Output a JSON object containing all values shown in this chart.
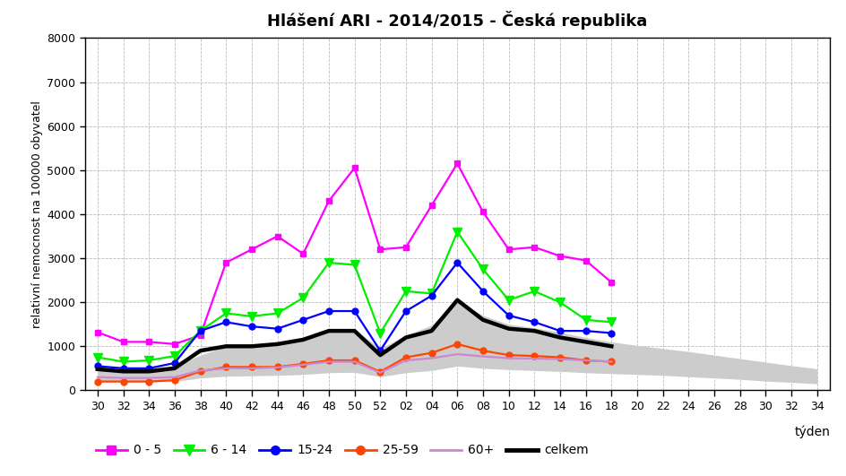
{
  "title": "Hlášení ARI - 2014/2015 - Česká republika",
  "ylabel": "relativní nemocnost na 100000 obyvatel",
  "xlabel": "týden",
  "ylim": [
    0,
    8000
  ],
  "yticks": [
    0,
    1000,
    2000,
    3000,
    4000,
    5000,
    6000,
    7000,
    8000
  ],
  "weeks_labels": [
    "30",
    "32",
    "34",
    "36",
    "38",
    "40",
    "42",
    "44",
    "46",
    "48",
    "50",
    "52",
    "02",
    "04",
    "06",
    "08",
    "10",
    "12",
    "14",
    "16",
    "18",
    "20",
    "22",
    "24",
    "26",
    "28",
    "30",
    "32",
    "34"
  ],
  "series_0_5": [
    1320,
    1100,
    1100,
    1050,
    1250,
    2900,
    3200,
    3500,
    3100,
    4300,
    5050,
    3200,
    3250,
    4200,
    5150,
    4050,
    3200,
    3250,
    3050,
    2950,
    2450,
    null,
    null,
    null,
    null,
    null,
    null,
    null,
    null
  ],
  "series_6_14": [
    750,
    650,
    680,
    780,
    1350,
    1750,
    1680,
    1750,
    2100,
    2900,
    2850,
    1300,
    2250,
    2200,
    3600,
    2750,
    2050,
    2250,
    2000,
    1600,
    1550,
    null,
    null,
    null,
    null,
    null,
    null,
    null,
    null
  ],
  "series_15_24": [
    550,
    500,
    500,
    620,
    1350,
    1550,
    1450,
    1400,
    1600,
    1800,
    1800,
    900,
    1800,
    2150,
    2900,
    2250,
    1700,
    1550,
    1350,
    1350,
    1300,
    null,
    null,
    null,
    null,
    null,
    null,
    null,
    null
  ],
  "series_25_59": [
    200,
    200,
    200,
    230,
    430,
    530,
    530,
    530,
    600,
    680,
    680,
    420,
    750,
    850,
    1050,
    900,
    800,
    780,
    750,
    680,
    650,
    null,
    null,
    null,
    null,
    null,
    null,
    null,
    null
  ],
  "series_60plus": [
    300,
    280,
    280,
    300,
    450,
    500,
    500,
    520,
    580,
    650,
    650,
    400,
    680,
    730,
    820,
    770,
    730,
    720,
    710,
    680,
    650,
    null,
    null,
    null,
    null,
    null,
    null,
    null,
    null
  ],
  "series_celkem": [
    480,
    430,
    430,
    500,
    900,
    1000,
    1000,
    1050,
    1150,
    1350,
    1350,
    800,
    1200,
    1350,
    2050,
    1600,
    1400,
    1350,
    1200,
    1100,
    1000,
    null,
    null,
    null,
    null,
    null,
    null,
    null,
    null
  ],
  "shade_upper": [
    550,
    530,
    510,
    560,
    800,
    1000,
    1020,
    1080,
    1150,
    1350,
    1380,
    950,
    1250,
    1480,
    2050,
    1700,
    1500,
    1420,
    1320,
    1200,
    1100,
    1020,
    950,
    880,
    800,
    720,
    640,
    560,
    490
  ],
  "shade_lower": [
    200,
    190,
    190,
    200,
    280,
    320,
    330,
    340,
    360,
    400,
    410,
    310,
    400,
    450,
    550,
    500,
    470,
    450,
    430,
    400,
    380,
    360,
    340,
    310,
    280,
    250,
    210,
    180,
    150
  ],
  "color_0_5": "#FF00FF",
  "color_6_14": "#00EE00",
  "color_15_24": "#0000FF",
  "color_25_59": "#FF4500",
  "color_60plus": "#CC88CC",
  "color_celkem": "#000000",
  "color_shade_face": "#CCCCCC",
  "color_shade_edge": "#AAAAAA",
  "bg_color": "#FFFFFF",
  "grid_color": "#BBBBBB"
}
